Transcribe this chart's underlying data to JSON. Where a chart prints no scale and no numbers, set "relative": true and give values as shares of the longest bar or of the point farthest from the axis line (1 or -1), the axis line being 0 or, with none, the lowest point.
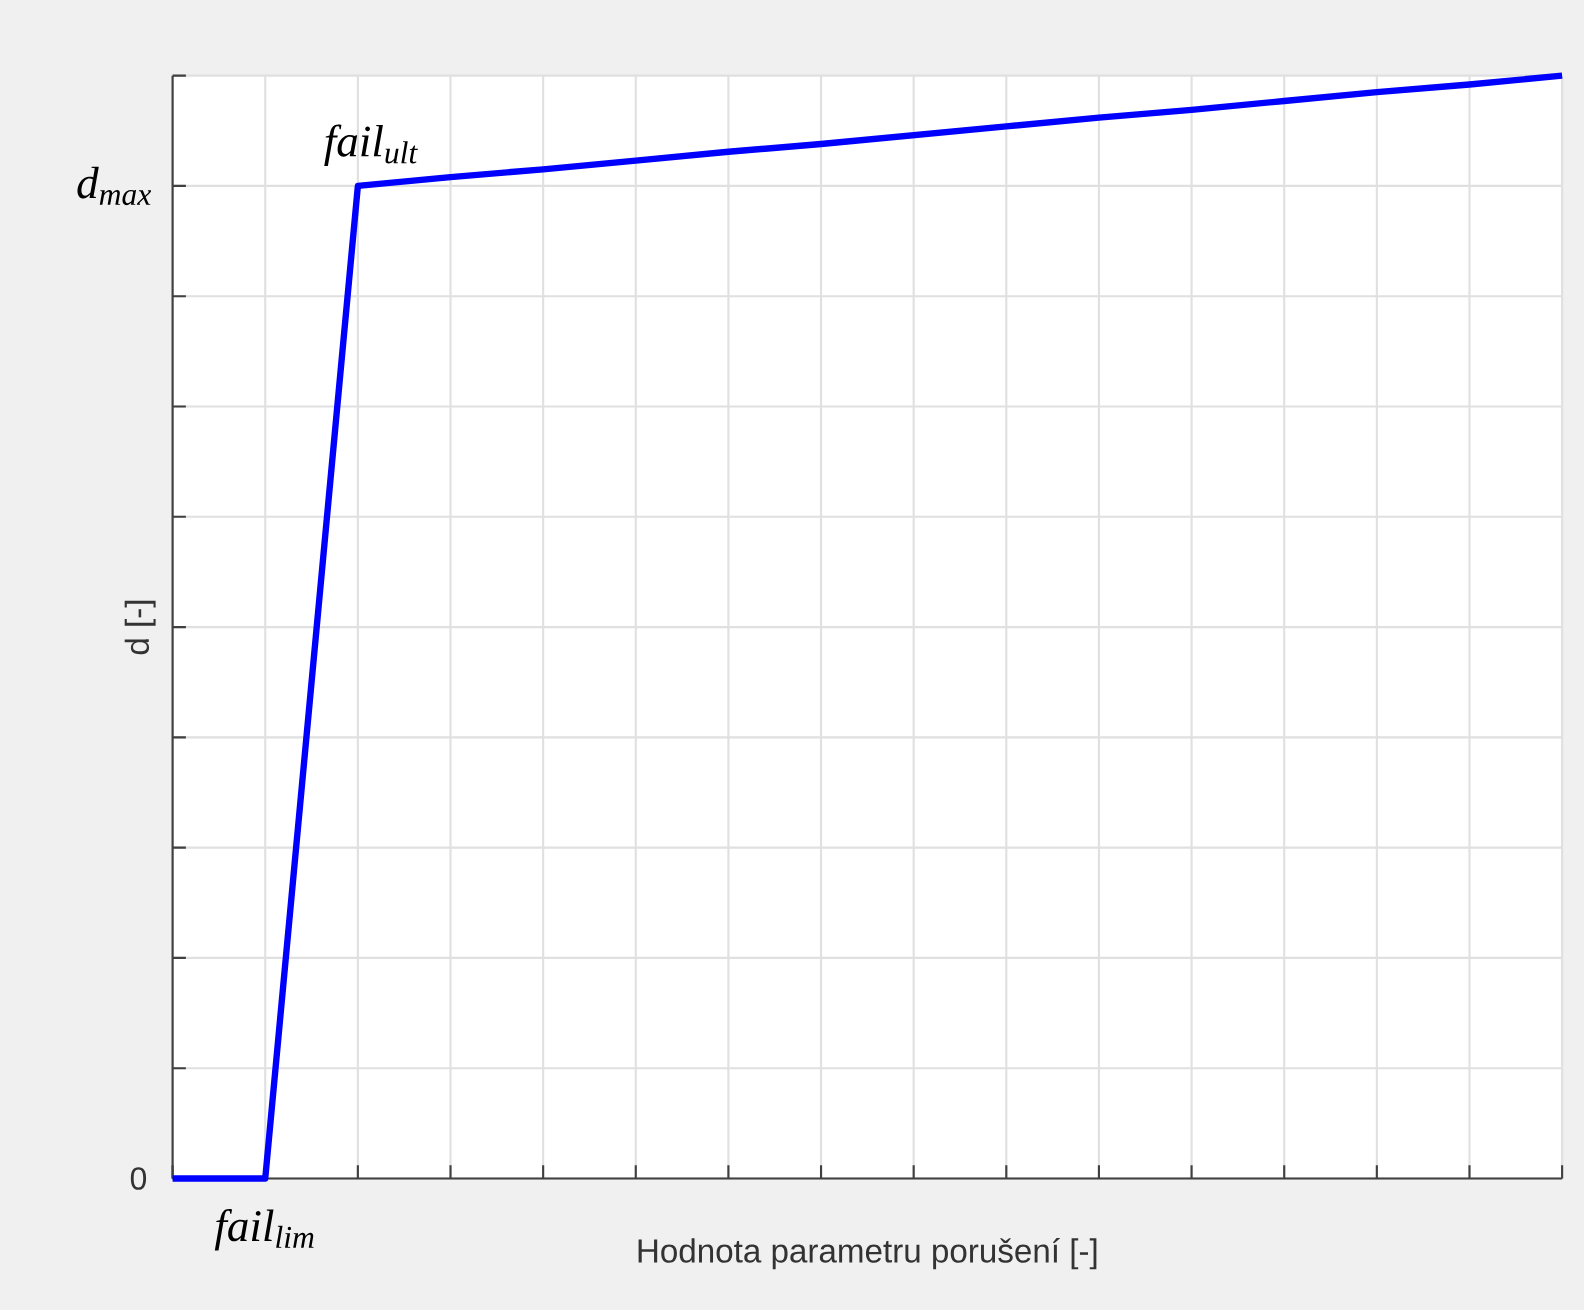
{
  "chart_data": {
    "type": "line",
    "relative": true,
    "xlabel": "Hodnota parametru porušení [-]",
    "ylabel": "d [-]",
    "categories": [
      null,
      null,
      null,
      null,
      null,
      null,
      null,
      null,
      null,
      null,
      null,
      null,
      null,
      null,
      null,
      null
    ],
    "series": [
      {
        "color": "#0000ff",
        "values": [
          0,
          0,
          0.9,
          0.908,
          0.915,
          0.923,
          0.931,
          0.938,
          0.946,
          0.954,
          0.962,
          0.969,
          0.977,
          0.985,
          0.992,
          1
        ]
      }
    ],
    "annotations": [
      "fail$_{ult}$",
      "fail$_{lim}$",
      "d$_{max}$",
      "0"
    ],
    "grid": true
  }
}
